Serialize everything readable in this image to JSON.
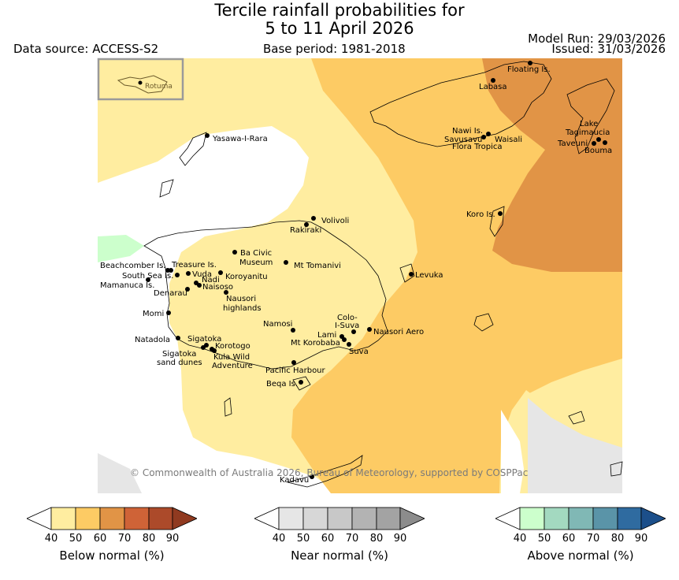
{
  "header": {
    "title_line1": "Tercile rainfall probabilities for",
    "title_line2": "5 to 11 April 2026",
    "data_source": "Data source: ACCESS-S2",
    "base_period": "Base period: 1981-2018",
    "model_run": "Model Run: 29/03/2026",
    "issued": "Issued: 31/03/2026"
  },
  "inset": {
    "label": "Rotuma"
  },
  "copyright": "© Commonwealth of Australia 2026, Bureau of Meteorology, supported by COSPPac",
  "colors": {
    "below_40": "#ffeda0",
    "below_50": "#fdcb64",
    "below_60": "#e19446",
    "below_70": "#cf6337",
    "below_80": "#ac4a2a",
    "below_90": "#903a20",
    "near_40": "#e6e6e6",
    "near_50": "#d7d7d7",
    "near_60": "#c8c8c8",
    "near_70": "#b3b3b3",
    "near_80": "#a3a3a3",
    "near_90": "#8c8c8c",
    "above_40": "#ccffcc",
    "above_50": "#a3d9c0",
    "above_60": "#80b8b5",
    "above_70": "#5a94a8",
    "above_80": "#2f6ba0",
    "above_90": "#1c4f8a"
  },
  "places": [
    {
      "name": "Floating Is."
    },
    {
      "name": "Labasa"
    },
    {
      "name": "Nawi Is."
    },
    {
      "name": "Savusavu"
    },
    {
      "name": "Waisali"
    },
    {
      "name": "Flora Tropica"
    },
    {
      "name": "Lake"
    },
    {
      "name": "Tagimaucia"
    },
    {
      "name": "Taveuni"
    },
    {
      "name": "Bouma"
    },
    {
      "name": "Yasawa-I-Rara"
    },
    {
      "name": "Koro Is."
    },
    {
      "name": "Volivoli"
    },
    {
      "name": "Rakiraki"
    },
    {
      "name": "Ba Civic"
    },
    {
      "name": "Museum"
    },
    {
      "name": "Mt Tomanivi"
    },
    {
      "name": "Beachcomber Is."
    },
    {
      "name": "Treasure Is."
    },
    {
      "name": "South Sea Is."
    },
    {
      "name": "Vuda"
    },
    {
      "name": "Nadi"
    },
    {
      "name": "Koroyanitu"
    },
    {
      "name": "Mamanuca Is."
    },
    {
      "name": "Naisoso"
    },
    {
      "name": "Denarau"
    },
    {
      "name": "Nausori"
    },
    {
      "name": "highlands"
    },
    {
      "name": "Levuka"
    },
    {
      "name": "Momi"
    },
    {
      "name": "Colo-"
    },
    {
      "name": "I-Suva"
    },
    {
      "name": "Namosi"
    },
    {
      "name": "Lami"
    },
    {
      "name": "Nausori Aero"
    },
    {
      "name": "Natadola"
    },
    {
      "name": "Sigatoka"
    },
    {
      "name": "Mt Korobaba"
    },
    {
      "name": "Suva"
    },
    {
      "name": "Korotogo"
    },
    {
      "name": "Sigatoka"
    },
    {
      "name": "sand dunes"
    },
    {
      "name": "Kula Wild"
    },
    {
      "name": "Adventure"
    },
    {
      "name": "Pacific Harbour"
    },
    {
      "name": "Beqa Is."
    },
    {
      "name": "Kadavu"
    }
  ],
  "colorbars": {
    "below": {
      "label": "Below normal (%)",
      "ticks": [
        "40",
        "50",
        "60",
        "70",
        "80",
        "90"
      ]
    },
    "near": {
      "label": "Near normal (%)",
      "ticks": [
        "40",
        "50",
        "60",
        "70",
        "80",
        "90"
      ]
    },
    "above": {
      "label": "Above normal (%)",
      "ticks": [
        "40",
        "50",
        "60",
        "70",
        "80",
        "90"
      ]
    }
  }
}
